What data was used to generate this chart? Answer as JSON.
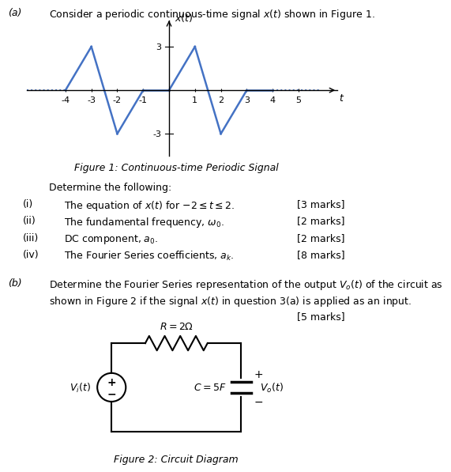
{
  "bg_color": "#ffffff",
  "signal_color": "#4472C4",
  "part_a_label": "(a)",
  "part_a_text": "Consider a periodic continuous-time signal $x(t)$ shown in Figure 1.",
  "fig1_caption": "Figure 1: Continuous-time Periodic Signal",
  "determine_text": "Determine the following:",
  "items": [
    {
      "num": "(i)",
      "text": "The equation of $x(t)$ for $-2 \\leq t \\leq 2$.",
      "marks": "[3 marks]"
    },
    {
      "num": "(ii)",
      "text": "The fundamental frequency, $\\omega_0$.",
      "marks": "[2 marks]"
    },
    {
      "num": "(iii)",
      "text": "DC component, $a_0$.",
      "marks": "[2 marks]"
    },
    {
      "num": "(iv)",
      "text": "The Fourier Series coefficients, $a_k$.",
      "marks": "[8 marks]"
    }
  ],
  "part_b_label": "(b)",
  "part_b_line1": "Determine the Fourier Series representation of the output $V_o(t)$ of the circuit as",
  "part_b_line2": "shown in Figure 2 if the signal $x(t)$ in question 3(a) is applied as an input.",
  "part_b_marks": "[5 marks]",
  "fig2_caption": "Figure 2: Circuit Diagram",
  "xlim": [
    -5.5,
    6.5
  ],
  "ylim": [
    -4.5,
    4.8
  ],
  "xticks": [
    -4,
    -3,
    -2,
    -1,
    0,
    1,
    2,
    3,
    4,
    5
  ]
}
